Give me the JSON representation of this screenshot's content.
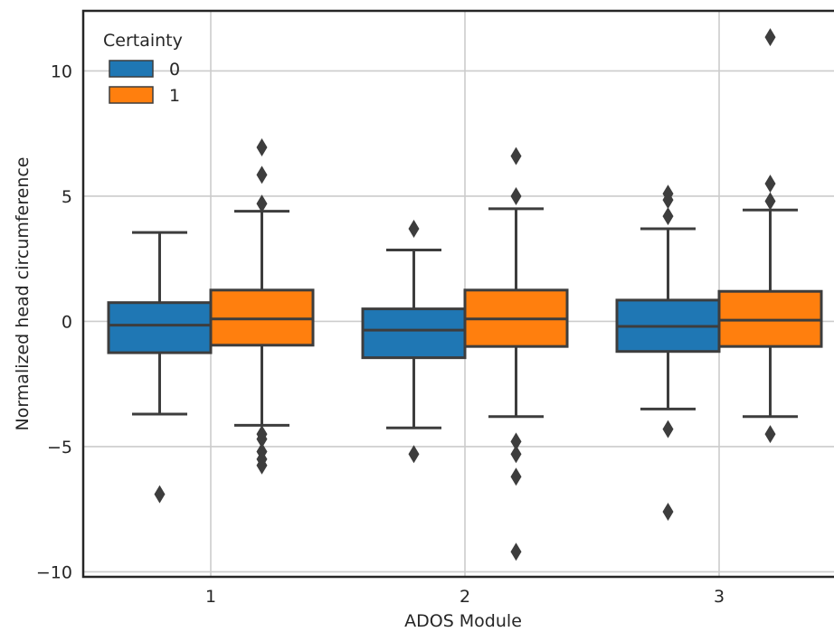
{
  "chart_data": {
    "type": "box",
    "xlabel": "ADOS Module",
    "ylabel": "Normalized head circumference",
    "categories": [
      "1",
      "2",
      "3"
    ],
    "ylim": [
      -10.2,
      12.4
    ],
    "yticks": [
      -10,
      -5,
      0,
      5,
      10
    ],
    "ytick_labels": [
      "−10",
      "−5",
      "0",
      "5",
      "10"
    ],
    "grid": true,
    "legend": {
      "title": "Certainty",
      "placement": "top-left",
      "entries": [
        "0",
        "1"
      ]
    },
    "series": [
      {
        "name": "0",
        "color": "#1f77b4",
        "boxes": [
          {
            "category": "1",
            "whisker_low": -3.7,
            "q1": -1.25,
            "median": -0.15,
            "q3": 0.75,
            "whisker_high": 3.55,
            "outliers": [
              -6.9
            ]
          },
          {
            "category": "2",
            "whisker_low": -4.25,
            "q1": -1.45,
            "median": -0.35,
            "q3": 0.5,
            "whisker_high": 2.85,
            "outliers": [
              3.7,
              -5.3
            ]
          },
          {
            "category": "3",
            "whisker_low": -3.5,
            "q1": -1.2,
            "median": -0.2,
            "q3": 0.85,
            "whisker_high": 3.7,
            "outliers": [
              5.1,
              4.85,
              4.2,
              -4.3,
              -7.6
            ]
          }
        ]
      },
      {
        "name": "1",
        "color": "#ff7f0e",
        "boxes": [
          {
            "category": "1",
            "whisker_low": -4.15,
            "q1": -0.95,
            "median": 0.1,
            "q3": 1.25,
            "whisker_high": 4.4,
            "outliers": [
              6.95,
              5.85,
              4.7,
              -4.5,
              -4.7,
              -5.2,
              -5.5,
              -5.75
            ]
          },
          {
            "category": "2",
            "whisker_low": -3.8,
            "q1": -1.0,
            "median": 0.1,
            "q3": 1.25,
            "whisker_high": 4.5,
            "outliers": [
              6.6,
              5.0,
              -4.8,
              -5.3,
              -6.2,
              -9.2
            ]
          },
          {
            "category": "3",
            "whisker_low": -3.8,
            "q1": -1.0,
            "median": 0.05,
            "q3": 1.2,
            "whisker_high": 4.45,
            "outliers": [
              11.35,
              5.5,
              4.8,
              -4.5
            ]
          }
        ]
      }
    ]
  }
}
